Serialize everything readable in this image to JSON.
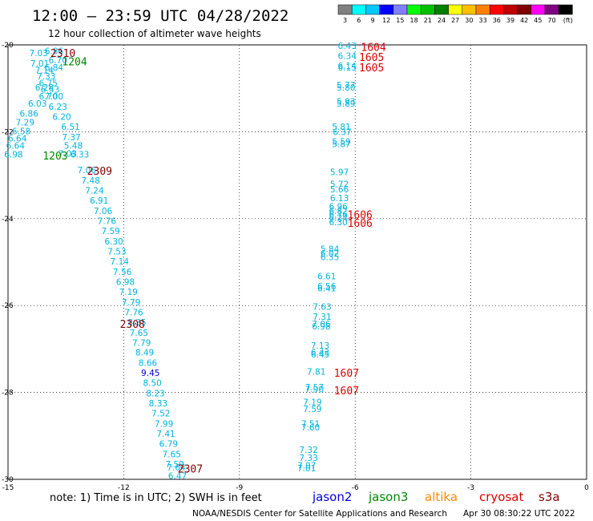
{
  "header": {
    "title": "12:00 – 23:59 UTC 04/28/2022",
    "subtitle": "12 hour collection of altimeter wave heights",
    "scale_ticks": [
      "3",
      "6",
      "9",
      "12",
      "15",
      "18",
      "21",
      "24",
      "27",
      "30",
      "33",
      "36",
      "39",
      "42",
      "45",
      "70",
      "(ft)"
    ],
    "scale_colors": [
      "#808080",
      "#00ffff",
      "#00c8ff",
      "#0000ff",
      "#8080ff",
      "#00ff00",
      "#00c000",
      "#008000",
      "#ffff00",
      "#ffc000",
      "#ff8000",
      "#ff0000",
      "#c00000",
      "#800000",
      "#ff00ff",
      "#800080",
      "#000000"
    ]
  },
  "footer": {
    "note": "note:  1) Time is in UTC;  2) SWH is in feet",
    "satellites": [
      {
        "name": "jason2",
        "color": "#0000dd"
      },
      {
        "name": "jason3",
        "color": "#008800"
      },
      {
        "name": "altika",
        "color": "#ff8800"
      },
      {
        "name": "cryosat",
        "color": "#dd0000"
      },
      {
        "name": "s3a",
        "color": "#880000"
      }
    ],
    "credit": "NOAA/NESDIS Center for Satellite Applications and Research",
    "timestamp": "Apr 30 08:30:22 UTC 2022"
  },
  "map": {
    "lon_range": [
      -15,
      0
    ],
    "lat_range": [
      -30,
      -20
    ],
    "x_ticks": [
      -15,
      -12,
      -9,
      -6,
      -3,
      0
    ],
    "y_ticks": [
      -20,
      -22,
      -24,
      -26,
      -28,
      -30
    ],
    "grid": true
  },
  "colors": {
    "light": "#00b4dc",
    "blue": "#0000dd",
    "green": "#008800",
    "red": "#dd0000",
    "dark": "#880000"
  },
  "wave_heights": [
    {
      "lon": -14.45,
      "lat": -20.18,
      "v": "7.03",
      "c": "light"
    },
    {
      "lon": -14.05,
      "lat": -20.14,
      "v": "6.86",
      "c": "light"
    },
    {
      "lon": -14.42,
      "lat": -20.42,
      "v": "7.01",
      "c": "light"
    },
    {
      "lon": -13.95,
      "lat": -20.35,
      "v": "6.70",
      "c": "light"
    },
    {
      "lon": -14.3,
      "lat": -20.58,
      "v": "7.14",
      "c": "light"
    },
    {
      "lon": -14.05,
      "lat": -20.52,
      "v": "6.84",
      "c": "light"
    },
    {
      "lon": -14.25,
      "lat": -20.72,
      "v": "7.33",
      "c": "light"
    },
    {
      "lon": -14.2,
      "lat": -20.88,
      "v": "6.75",
      "c": "light"
    },
    {
      "lon": -14.15,
      "lat": -21.02,
      "v": "6.53",
      "c": "light"
    },
    {
      "lon": -14.3,
      "lat": -20.98,
      "v": "6.28",
      "c": "light"
    },
    {
      "lon": -14.2,
      "lat": -21.18,
      "v": "6.70",
      "c": "light"
    },
    {
      "lon": -14.05,
      "lat": -21.18,
      "v": "7.00",
      "c": "light"
    },
    {
      "lon": -14.48,
      "lat": -21.35,
      "v": "6.03",
      "c": "light"
    },
    {
      "lon": -13.95,
      "lat": -21.42,
      "v": "6.23",
      "c": "light"
    },
    {
      "lon": -14.7,
      "lat": -21.58,
      "v": "6.86",
      "c": "light"
    },
    {
      "lon": -13.85,
      "lat": -21.65,
      "v": "6.20",
      "c": "light"
    },
    {
      "lon": -14.8,
      "lat": -21.78,
      "v": "7.29",
      "c": "light"
    },
    {
      "lon": -13.62,
      "lat": -21.88,
      "v": "6.51",
      "c": "light"
    },
    {
      "lon": -14.9,
      "lat": -21.98,
      "v": "6.58",
      "c": "light"
    },
    {
      "lon": -13.6,
      "lat": -22.12,
      "v": "7.37",
      "c": "light"
    },
    {
      "lon": -15.0,
      "lat": -22.15,
      "v": "6.64",
      "c": "light"
    },
    {
      "lon": -15.05,
      "lat": -22.32,
      "v": "6.64",
      "c": "light"
    },
    {
      "lon": -13.55,
      "lat": -22.32,
      "v": "5.48",
      "c": "light"
    },
    {
      "lon": -15.1,
      "lat": -22.52,
      "v": "6.98",
      "c": "light"
    },
    {
      "lon": -13.7,
      "lat": -22.5,
      "v": "7.03",
      "c": "light"
    },
    {
      "lon": -13.38,
      "lat": -22.52,
      "v": "6.33",
      "c": "light"
    },
    {
      "lon": -13.2,
      "lat": -22.88,
      "v": "7.06",
      "c": "light"
    },
    {
      "lon": -13.1,
      "lat": -23.12,
      "v": "7.48",
      "c": "light"
    },
    {
      "lon": -13.0,
      "lat": -23.35,
      "v": "7.24",
      "c": "light"
    },
    {
      "lon": -12.88,
      "lat": -23.58,
      "v": "6.91",
      "c": "light"
    },
    {
      "lon": -12.78,
      "lat": -23.82,
      "v": "7.06",
      "c": "light"
    },
    {
      "lon": -12.68,
      "lat": -24.05,
      "v": "7.76",
      "c": "light"
    },
    {
      "lon": -12.58,
      "lat": -24.28,
      "v": "7.59",
      "c": "light"
    },
    {
      "lon": -12.5,
      "lat": -24.52,
      "v": "6.30",
      "c": "light"
    },
    {
      "lon": -12.42,
      "lat": -24.75,
      "v": "7.53",
      "c": "light"
    },
    {
      "lon": -12.35,
      "lat": -24.98,
      "v": "7.14",
      "c": "light"
    },
    {
      "lon": -12.28,
      "lat": -25.22,
      "v": "7.56",
      "c": "light"
    },
    {
      "lon": -12.2,
      "lat": -25.45,
      "v": "6.98",
      "c": "light"
    },
    {
      "lon": -12.12,
      "lat": -25.68,
      "v": "7.19",
      "c": "light"
    },
    {
      "lon": -12.05,
      "lat": -25.92,
      "v": "7.79",
      "c": "light"
    },
    {
      "lon": -11.98,
      "lat": -26.15,
      "v": "7.76",
      "c": "light"
    },
    {
      "lon": -11.9,
      "lat": -26.38,
      "v": "8.35",
      "c": "light"
    },
    {
      "lon": -11.85,
      "lat": -26.62,
      "v": "7.65",
      "c": "light"
    },
    {
      "lon": -11.78,
      "lat": -26.85,
      "v": "7.79",
      "c": "light"
    },
    {
      "lon": -11.7,
      "lat": -27.08,
      "v": "8.49",
      "c": "light"
    },
    {
      "lon": -11.62,
      "lat": -27.32,
      "v": "8.66",
      "c": "light"
    },
    {
      "lon": -11.55,
      "lat": -27.55,
      "v": "9.45",
      "c": "blue"
    },
    {
      "lon": -11.5,
      "lat": -27.78,
      "v": "8.50",
      "c": "light"
    },
    {
      "lon": -11.42,
      "lat": -28.02,
      "v": "8.23",
      "c": "light"
    },
    {
      "lon": -11.35,
      "lat": -28.25,
      "v": "8.33",
      "c": "light"
    },
    {
      "lon": -11.28,
      "lat": -28.48,
      "v": "7.52",
      "c": "light"
    },
    {
      "lon": -11.2,
      "lat": -28.72,
      "v": "7.99",
      "c": "light"
    },
    {
      "lon": -11.15,
      "lat": -28.95,
      "v": "7.41",
      "c": "light"
    },
    {
      "lon": -11.08,
      "lat": -29.18,
      "v": "6.79",
      "c": "light"
    },
    {
      "lon": -11.0,
      "lat": -29.42,
      "v": "7.65",
      "c": "light"
    },
    {
      "lon": -10.92,
      "lat": -29.65,
      "v": "7.59",
      "c": "light"
    },
    {
      "lon": -10.88,
      "lat": -29.72,
      "v": "7.64",
      "c": "light"
    },
    {
      "lon": -10.85,
      "lat": -29.92,
      "v": "6.47",
      "c": "light"
    },
    {
      "lon": -6.45,
      "lat": -20.02,
      "v": "6.43",
      "c": "light"
    },
    {
      "lon": -6.45,
      "lat": -20.25,
      "v": "6.34",
      "c": "light"
    },
    {
      "lon": -6.45,
      "lat": -20.48,
      "v": "6.14",
      "c": "light"
    },
    {
      "lon": -6.45,
      "lat": -20.52,
      "v": "6.15",
      "c": "light"
    },
    {
      "lon": -6.48,
      "lat": -20.92,
      "v": "5.77",
      "c": "light"
    },
    {
      "lon": -6.48,
      "lat": -20.98,
      "v": "5.80",
      "c": "light"
    },
    {
      "lon": -6.48,
      "lat": -21.3,
      "v": "5.93",
      "c": "light"
    },
    {
      "lon": -6.48,
      "lat": -21.35,
      "v": "5.89",
      "c": "light"
    },
    {
      "lon": -6.6,
      "lat": -21.88,
      "v": "5.81",
      "c": "light"
    },
    {
      "lon": -6.58,
      "lat": -22.0,
      "v": "6.37",
      "c": "light"
    },
    {
      "lon": -6.6,
      "lat": -22.22,
      "v": "5.59",
      "c": "light"
    },
    {
      "lon": -6.6,
      "lat": -22.28,
      "v": "5.87",
      "c": "light"
    },
    {
      "lon": -6.65,
      "lat": -22.92,
      "v": "5.97",
      "c": "light"
    },
    {
      "lon": -6.65,
      "lat": -23.2,
      "v": "5.72",
      "c": "light"
    },
    {
      "lon": -6.65,
      "lat": -23.32,
      "v": "5.66",
      "c": "light"
    },
    {
      "lon": -6.65,
      "lat": -23.52,
      "v": "6.13",
      "c": "light"
    },
    {
      "lon": -6.68,
      "lat": -23.72,
      "v": "6.96",
      "c": "light"
    },
    {
      "lon": -6.68,
      "lat": -23.82,
      "v": "6.82",
      "c": "light"
    },
    {
      "lon": -6.68,
      "lat": -23.9,
      "v": "6.76",
      "c": "light"
    },
    {
      "lon": -6.68,
      "lat": -23.98,
      "v": "6.24",
      "c": "light"
    },
    {
      "lon": -6.68,
      "lat": -24.08,
      "v": "6.30",
      "c": "light"
    },
    {
      "lon": -6.9,
      "lat": -24.7,
      "v": "5.84",
      "c": "light"
    },
    {
      "lon": -6.9,
      "lat": -24.8,
      "v": "6.02",
      "c": "light"
    },
    {
      "lon": -6.9,
      "lat": -24.88,
      "v": "6.35",
      "c": "light"
    },
    {
      "lon": -6.98,
      "lat": -25.32,
      "v": "6.61",
      "c": "light"
    },
    {
      "lon": -6.98,
      "lat": -25.55,
      "v": "6.56",
      "c": "light"
    },
    {
      "lon": -6.98,
      "lat": -25.6,
      "v": "6.41",
      "c": "light"
    },
    {
      "lon": -7.1,
      "lat": -26.02,
      "v": "7.63",
      "c": "light"
    },
    {
      "lon": -7.1,
      "lat": -26.25,
      "v": "7.31",
      "c": "light"
    },
    {
      "lon": -7.12,
      "lat": -26.42,
      "v": "7.06",
      "c": "light"
    },
    {
      "lon": -7.12,
      "lat": -26.48,
      "v": "6.98",
      "c": "light"
    },
    {
      "lon": -7.15,
      "lat": -26.92,
      "v": "7.13",
      "c": "light"
    },
    {
      "lon": -7.15,
      "lat": -27.08,
      "v": "6.43",
      "c": "light"
    },
    {
      "lon": -7.15,
      "lat": -27.12,
      "v": "6.45",
      "c": "light"
    },
    {
      "lon": -7.25,
      "lat": -27.52,
      "v": "7.81",
      "c": "light"
    },
    {
      "lon": -7.3,
      "lat": -27.88,
      "v": "7.57",
      "c": "light"
    },
    {
      "lon": -7.3,
      "lat": -27.92,
      "v": "7.90",
      "c": "light"
    },
    {
      "lon": -7.35,
      "lat": -28.22,
      "v": "7.19",
      "c": "light"
    },
    {
      "lon": -7.35,
      "lat": -28.38,
      "v": "7.59",
      "c": "light"
    },
    {
      "lon": -7.4,
      "lat": -28.72,
      "v": "7.51",
      "c": "light"
    },
    {
      "lon": -7.4,
      "lat": -28.8,
      "v": "7.60",
      "c": "light"
    },
    {
      "lon": -7.45,
      "lat": -29.32,
      "v": "7.32",
      "c": "light"
    },
    {
      "lon": -7.45,
      "lat": -29.5,
      "v": "7.33",
      "c": "light"
    },
    {
      "lon": -7.5,
      "lat": -29.68,
      "v": "7.07",
      "c": "light"
    },
    {
      "lon": -7.5,
      "lat": -29.74,
      "v": "7.01",
      "c": "light"
    }
  ],
  "time_labels": [
    {
      "lon": -13.9,
      "lat": -20.18,
      "v": "2310",
      "c": "dark"
    },
    {
      "lon": -13.6,
      "lat": -20.38,
      "v": "1204",
      "c": "green"
    },
    {
      "lon": -14.1,
      "lat": -22.55,
      "v": "1203",
      "c": "green"
    },
    {
      "lon": -12.95,
      "lat": -22.9,
      "v": "2309",
      "c": "dark"
    },
    {
      "lon": -12.1,
      "lat": -26.42,
      "v": "2308",
      "c": "dark"
    },
    {
      "lon": -10.6,
      "lat": -29.75,
      "v": "2307",
      "c": "dark"
    },
    {
      "lon": -5.85,
      "lat": -20.05,
      "v": "1604",
      "c": "red"
    },
    {
      "lon": -5.9,
      "lat": -20.28,
      "v": "1605",
      "c": "red"
    },
    {
      "lon": -5.9,
      "lat": -20.52,
      "v": "1605",
      "c": "red"
    },
    {
      "lon": -6.2,
      "lat": -23.9,
      "v": "1606",
      "c": "red"
    },
    {
      "lon": -6.2,
      "lat": -24.1,
      "v": "1606",
      "c": "red"
    },
    {
      "lon": -6.55,
      "lat": -27.55,
      "v": "1607",
      "c": "red"
    },
    {
      "lon": -6.55,
      "lat": -27.95,
      "v": "1607",
      "c": "red"
    }
  ]
}
